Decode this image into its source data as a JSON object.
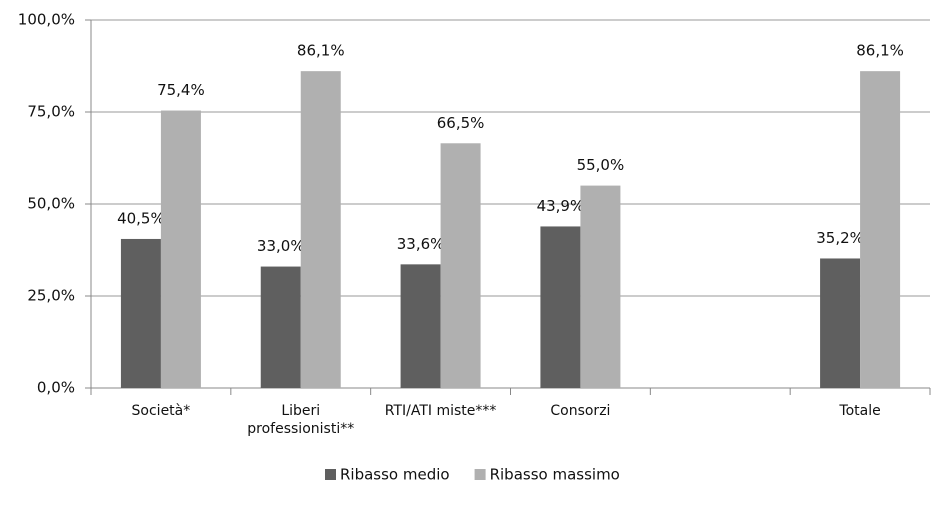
{
  "chart_data": {
    "type": "bar",
    "categories": [
      "Società*",
      "Liberi professionisti**",
      "RTI/ATI miste***",
      "Consorzi",
      null,
      "Totale"
    ],
    "series": [
      {
        "name": "Ribasso medio",
        "color": "#5f5f5f",
        "values": [
          40.5,
          33.0,
          33.6,
          43.9,
          null,
          35.2
        ],
        "value_labels": [
          "40,5%",
          "33,0%",
          "33,6%",
          "43,9%",
          null,
          "35,2%"
        ]
      },
      {
        "name": "Ribasso massimo",
        "color": "#b0b0b0",
        "values": [
          75.4,
          86.1,
          66.5,
          55.0,
          null,
          86.1
        ],
        "value_labels": [
          "75,4%",
          "86,1%",
          "66,5%",
          "55,0%",
          null,
          "86,1%"
        ]
      }
    ],
    "ylim": [
      0,
      100
    ],
    "yticks": [
      {
        "value": 0,
        "label": "0,0%"
      },
      {
        "value": 25,
        "label": "25,0%"
      },
      {
        "value": 50,
        "label": "50,0%"
      },
      {
        "value": 75,
        "label": "75,0%"
      },
      {
        "value": 100,
        "label": "100,0%"
      }
    ],
    "grid": true,
    "legend": "bottom"
  }
}
